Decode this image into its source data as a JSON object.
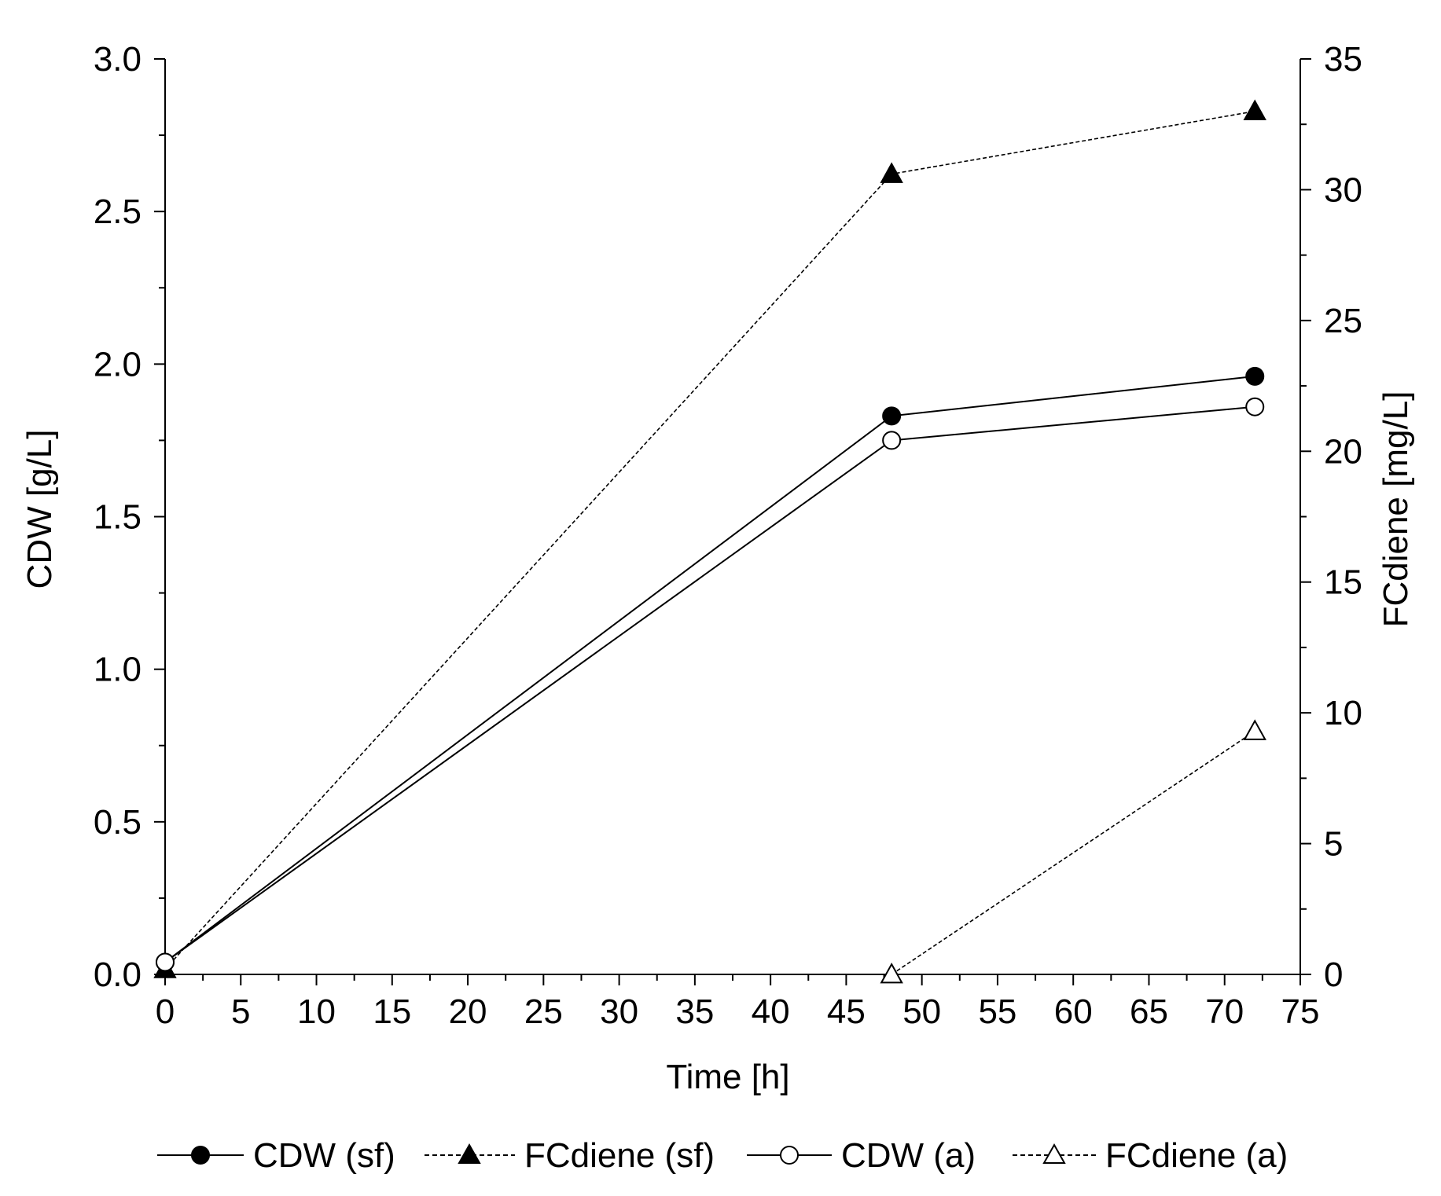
{
  "chart_data": {
    "type": "line",
    "title": "",
    "xlabel": "Time [h]",
    "ylabel": "CDW [g/L]",
    "y2label": "FCdiene [mg/L]",
    "xlim": [
      0,
      75
    ],
    "ylim": [
      0,
      3.0
    ],
    "y2lim": [
      0,
      35
    ],
    "xticks": [
      0,
      5,
      10,
      15,
      20,
      25,
      30,
      35,
      40,
      45,
      50,
      55,
      60,
      65,
      70,
      75
    ],
    "xtick_labels": [
      "0",
      "5",
      "10",
      "15",
      "20",
      "25",
      "30",
      "35",
      "40",
      "45",
      "50",
      "55",
      "60",
      "65",
      "70",
      "75"
    ],
    "yticks": [
      0,
      0.5,
      1.0,
      1.5,
      2.0,
      2.5,
      3.0
    ],
    "ytick_labels": [
      "0.0",
      "0.5",
      "1.0",
      "1.5",
      "2.0",
      "2.5",
      "3.0"
    ],
    "y2ticks": [
      0,
      5,
      10,
      15,
      20,
      25,
      30,
      35
    ],
    "y2tick_labels": [
      "0",
      "5",
      "10",
      "15",
      "20",
      "25",
      "30",
      "35"
    ],
    "grid": false,
    "legend_position": "bottom",
    "series": [
      {
        "name": "CDW (sf)",
        "axis": "left",
        "marker": "filled-circle",
        "line": "solid",
        "x": [
          0,
          48,
          72
        ],
        "y": [
          0.04,
          1.83,
          1.96
        ]
      },
      {
        "name": "FCdiene (sf)",
        "axis": "right",
        "marker": "filled-triangle",
        "line": "dashed",
        "x": [
          0,
          48,
          72
        ],
        "y": [
          0.2,
          30.6,
          33.0
        ]
      },
      {
        "name": "CDW (a)",
        "axis": "left",
        "marker": "open-circle",
        "line": "solid",
        "x": [
          0,
          48,
          72
        ],
        "y": [
          0.04,
          1.75,
          1.86
        ]
      },
      {
        "name": "FCdiene (a)",
        "axis": "right",
        "marker": "open-triangle",
        "line": "dashed",
        "x": [
          48,
          72
        ],
        "y": [
          0.0,
          9.3
        ]
      }
    ]
  }
}
